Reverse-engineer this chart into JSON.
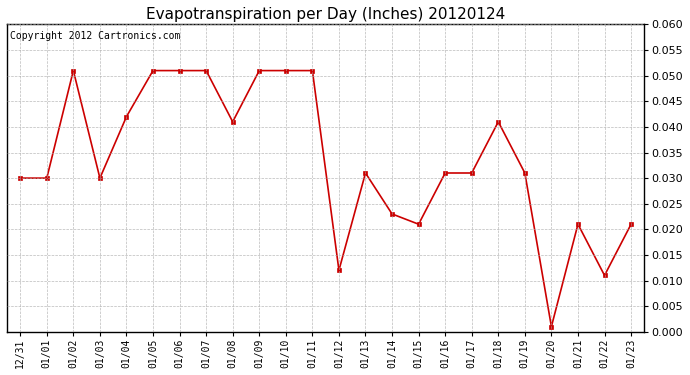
{
  "title": "Evapotranspiration per Day (Inches) 20120124",
  "copyright_text": "Copyright 2012 Cartronics.com",
  "x_labels": [
    "12/31",
    "01/01",
    "01/02",
    "01/03",
    "01/04",
    "01/05",
    "01/06",
    "01/07",
    "01/08",
    "01/09",
    "01/10",
    "01/11",
    "01/12",
    "01/13",
    "01/14",
    "01/15",
    "01/16",
    "01/17",
    "01/18",
    "01/19",
    "01/20",
    "01/21",
    "01/22",
    "01/23"
  ],
  "y_values": [
    0.03,
    0.03,
    0.051,
    0.03,
    0.042,
    0.051,
    0.051,
    0.051,
    0.041,
    0.051,
    0.051,
    0.051,
    0.012,
    0.031,
    0.023,
    0.021,
    0.031,
    0.031,
    0.041,
    0.031,
    0.001,
    0.021,
    0.011,
    0.021
  ],
  "line_color": "#cc0000",
  "marker": "s",
  "marker_size": 3,
  "marker_color": "#cc0000",
  "ylim": [
    0.0,
    0.06
  ],
  "ytick_step": 0.005,
  "background_color": "#ffffff",
  "grid_color": "#aaaaaa",
  "title_fontsize": 11,
  "copyright_fontsize": 7,
  "tick_fontsize": 7,
  "ytick_fontsize": 8
}
